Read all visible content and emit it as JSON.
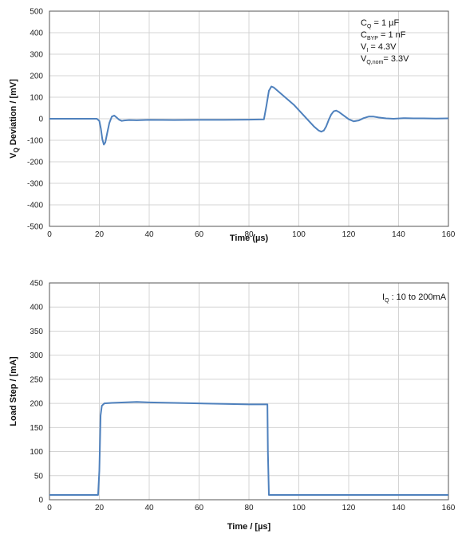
{
  "chart_data": [
    {
      "type": "line",
      "xlabel": "Time (µs)",
      "ylabel_main": "V",
      "ylabel_sub": "Q",
      "ylabel_rest": " Deviation / [mV]",
      "xlim": [
        0,
        160
      ],
      "ylim": [
        -500,
        500
      ],
      "x_ticks": [
        0,
        20,
        40,
        60,
        80,
        100,
        120,
        140,
        160
      ],
      "y_ticks": [
        -500,
        -400,
        -300,
        -200,
        -100,
        0,
        100,
        200,
        300,
        400,
        500
      ],
      "grid": true,
      "line_color": "#4f81bd",
      "annotations": [
        {
          "main": "C",
          "sub": "Q",
          "rest": "     = 1 µF"
        },
        {
          "main": "C",
          "sub": "BYP",
          "rest": "  = 1 nF"
        },
        {
          "main": "V",
          "sub": "I",
          "rest": "       = 4.3V"
        },
        {
          "main": "V",
          "sub": "Q,nom",
          "rest": "= 3.3V"
        }
      ],
      "series": [
        {
          "x": [
            0,
            10,
            19,
            20,
            20.6,
            21.2,
            21.8,
            22.4,
            23,
            24,
            25,
            26,
            27,
            28,
            29,
            30,
            32,
            35,
            40,
            50,
            60,
            70,
            80,
            86,
            87,
            88,
            89,
            90,
            92,
            95,
            98,
            100,
            102,
            104,
            106,
            108,
            109,
            110,
            111,
            112,
            113,
            114,
            115,
            116,
            118,
            120,
            122,
            124,
            126,
            128,
            130,
            132,
            135,
            138,
            142,
            146,
            150,
            155,
            160
          ],
          "y": [
            0,
            0,
            0,
            -10,
            -45,
            -95,
            -120,
            -110,
            -75,
            -20,
            10,
            15,
            5,
            -5,
            -10,
            -8,
            -6,
            -7,
            -5,
            -6,
            -5,
            -5,
            -4,
            -3,
            60,
            130,
            150,
            145,
            125,
            95,
            65,
            40,
            15,
            -10,
            -35,
            -55,
            -60,
            -55,
            -35,
            -5,
            20,
            35,
            38,
            32,
            15,
            -2,
            -12,
            -8,
            3,
            10,
            10,
            6,
            2,
            0,
            3,
            2,
            2,
            1,
            2
          ]
        }
      ]
    },
    {
      "type": "line",
      "xlabel": "Time / [µs]",
      "ylabel": "Load Step / [mA]",
      "xlim": [
        0,
        160
      ],
      "ylim": [
        0,
        450
      ],
      "x_ticks": [
        0,
        20,
        40,
        60,
        80,
        100,
        120,
        140,
        160
      ],
      "y_ticks": [
        0,
        50,
        100,
        150,
        200,
        250,
        300,
        350,
        400,
        450
      ],
      "grid": true,
      "line_color": "#4f81bd",
      "annotations": [
        {
          "main": "I",
          "sub": "Q",
          "rest": " :  10 to 200mA"
        }
      ],
      "series": [
        {
          "x": [
            0,
            19.5,
            20,
            20.5,
            21,
            22,
            25,
            30,
            35,
            40,
            50,
            60,
            70,
            80,
            87.4,
            87.6,
            88,
            90,
            100,
            120,
            140,
            160
          ],
          "y": [
            10,
            10,
            60,
            175,
            195,
            200,
            201,
            202,
            203,
            202,
            201,
            200,
            199,
            198,
            198,
            100,
            10,
            10,
            10,
            10,
            10,
            10
          ]
        }
      ]
    }
  ]
}
